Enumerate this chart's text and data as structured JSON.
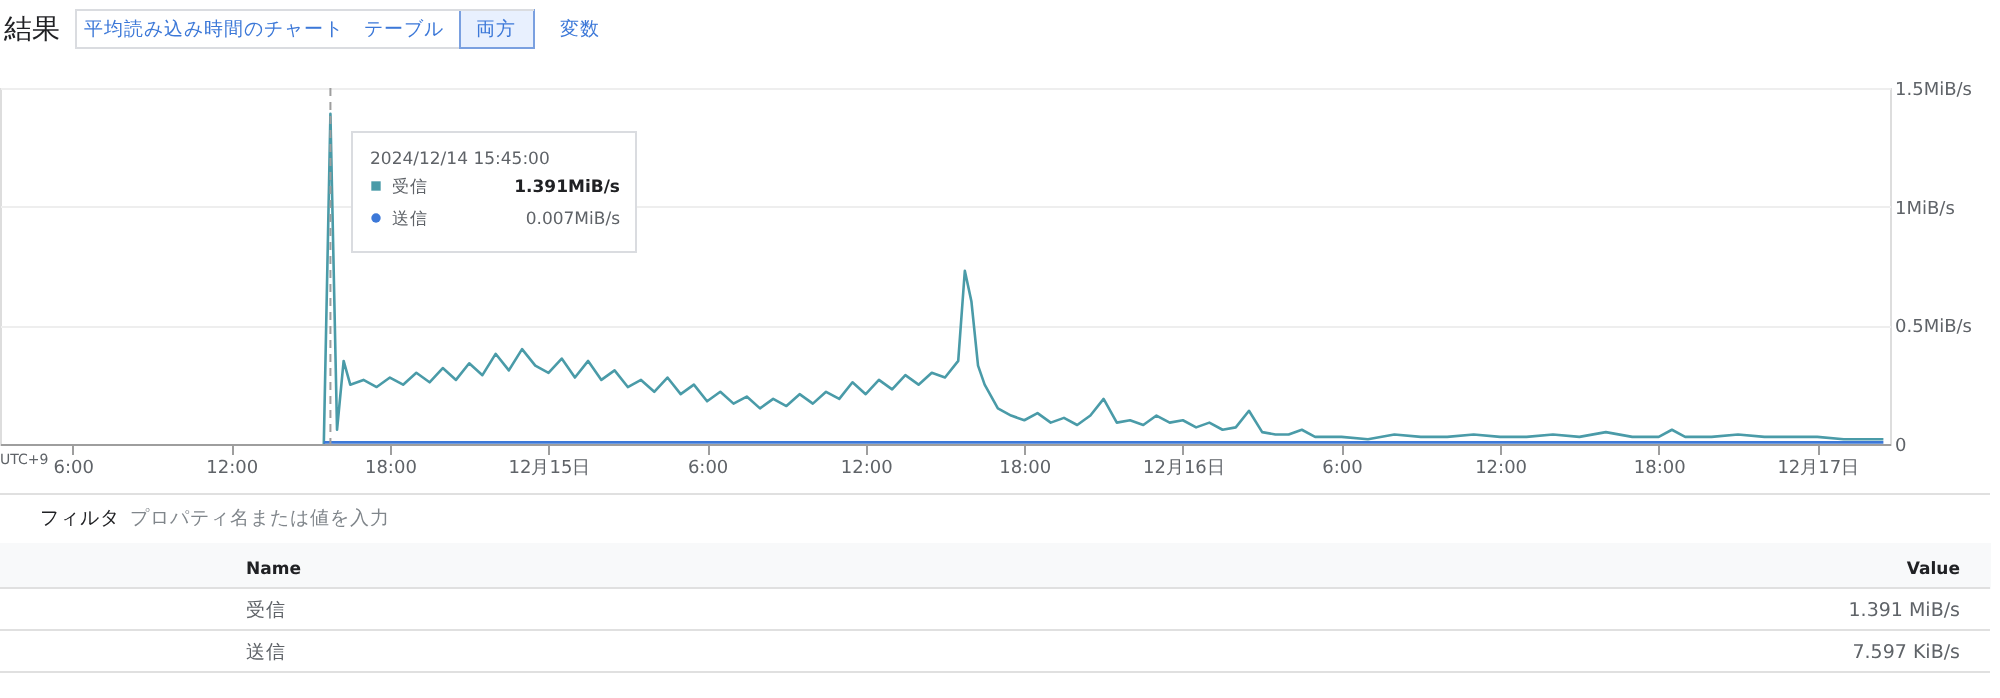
{
  "chart_data": {
    "type": "line",
    "title": "結果",
    "annotations": [
      "平均読み込み時間のチャート",
      "テーブル",
      "両方",
      "変数",
      "UTC+9",
      "2024/12/14 15:45:00",
      "1.391MiB/s",
      "0.007MiB/s",
      "フィルタ",
      "プロパティ名または値を入力",
      "Name",
      "Value",
      "1.391  MiB/s",
      "7.597  KiB/s"
    ],
    "x": [
      "2024-12-14T15:30",
      "2024-12-14T15:45",
      "2024-12-14T16:00",
      "2024-12-14T16:15",
      "2024-12-14T16:30",
      "2024-12-14T17:00",
      "2024-12-14T17:30",
      "2024-12-14T18:00",
      "2024-12-14T18:30",
      "2024-12-14T19:00",
      "2024-12-14T19:30",
      "2024-12-14T20:00",
      "2024-12-14T20:30",
      "2024-12-14T21:00",
      "2024-12-14T21:30",
      "2024-12-14T22:00",
      "2024-12-14T22:30",
      "2024-12-14T23:00",
      "2024-12-14T23:30",
      "2024-12-15T00:00",
      "2024-12-15T00:30",
      "2024-12-15T01:00",
      "2024-12-15T01:30",
      "2024-12-15T02:00",
      "2024-12-15T02:30",
      "2024-12-15T03:00",
      "2024-12-15T03:30",
      "2024-12-15T04:00",
      "2024-12-15T04:30",
      "2024-12-15T05:00",
      "2024-12-15T05:30",
      "2024-12-15T06:00",
      "2024-12-15T06:30",
      "2024-12-15T07:00",
      "2024-12-15T07:30",
      "2024-12-15T08:00",
      "2024-12-15T08:30",
      "2024-12-15T09:00",
      "2024-12-15T09:30",
      "2024-12-15T10:00",
      "2024-12-15T10:30",
      "2024-12-15T11:00",
      "2024-12-15T11:30",
      "2024-12-15T12:00",
      "2024-12-15T12:30",
      "2024-12-15T13:00",
      "2024-12-15T13:30",
      "2024-12-15T14:00",
      "2024-12-15T14:30",
      "2024-12-15T15:00",
      "2024-12-15T15:30",
      "2024-12-15T15:45",
      "2024-12-15T16:00",
      "2024-12-15T16:15",
      "2024-12-15T16:30",
      "2024-12-15T17:00",
      "2024-12-15T17:30",
      "2024-12-15T18:00",
      "2024-12-15T18:30",
      "2024-12-15T19:00",
      "2024-12-15T19:30",
      "2024-12-15T20:00",
      "2024-12-15T20:30",
      "2024-12-15T21:00",
      "2024-12-15T21:30",
      "2024-12-15T22:00",
      "2024-12-15T22:30",
      "2024-12-15T23:00",
      "2024-12-15T23:30",
      "2024-12-16T00:00",
      "2024-12-16T00:30",
      "2024-12-16T01:00",
      "2024-12-16T01:30",
      "2024-12-16T02:00",
      "2024-12-16T02:30",
      "2024-12-16T03:00",
      "2024-12-16T03:30",
      "2024-12-16T04:00",
      "2024-12-16T04:30",
      "2024-12-16T05:00",
      "2024-12-16T06:00",
      "2024-12-16T07:00",
      "2024-12-16T08:00",
      "2024-12-16T09:00",
      "2024-12-16T10:00",
      "2024-12-16T11:00",
      "2024-12-16T12:00",
      "2024-12-16T13:00",
      "2024-12-16T14:00",
      "2024-12-16T15:00",
      "2024-12-16T16:00",
      "2024-12-16T17:00",
      "2024-12-16T18:00",
      "2024-12-16T18:30",
      "2024-12-16T19:00",
      "2024-12-16T20:00",
      "2024-12-16T21:00",
      "2024-12-16T22:00",
      "2024-12-16T23:00",
      "2024-12-17T00:00",
      "2024-12-17T01:00",
      "2024-12-17T02:00",
      "2024-12-17T02:30"
    ],
    "series": [
      {
        "name": "受信",
        "color": "#4a9ba8",
        "values": [
          0,
          1.391,
          0.06,
          0.35,
          0.25,
          0.27,
          0.24,
          0.28,
          0.25,
          0.3,
          0.26,
          0.32,
          0.27,
          0.34,
          0.29,
          0.38,
          0.31,
          0.4,
          0.33,
          0.3,
          0.36,
          0.28,
          0.35,
          0.27,
          0.31,
          0.24,
          0.27,
          0.22,
          0.28,
          0.21,
          0.25,
          0.18,
          0.22,
          0.17,
          0.2,
          0.15,
          0.19,
          0.16,
          0.21,
          0.17,
          0.22,
          0.19,
          0.26,
          0.21,
          0.27,
          0.23,
          0.29,
          0.25,
          0.3,
          0.28,
          0.35,
          0.73,
          0.6,
          0.33,
          0.25,
          0.15,
          0.12,
          0.1,
          0.13,
          0.09,
          0.11,
          0.08,
          0.12,
          0.19,
          0.09,
          0.1,
          0.08,
          0.12,
          0.09,
          0.1,
          0.07,
          0.09,
          0.06,
          0.07,
          0.14,
          0.05,
          0.04,
          0.04,
          0.06,
          0.03,
          0.03,
          0.02,
          0.04,
          0.03,
          0.03,
          0.04,
          0.03,
          0.03,
          0.04,
          0.03,
          0.05,
          0.03,
          0.03,
          0.06,
          0.03,
          0.03,
          0.04,
          0.03,
          0.03,
          0.03,
          0.02,
          0.02,
          0.02
        ]
      },
      {
        "name": "送信",
        "color": "#3c78d8",
        "values": [
          0.007,
          0.007,
          0.007,
          0.007,
          0.007,
          0.007,
          0.007,
          0.007,
          0.007,
          0.007,
          0.007,
          0.007,
          0.007,
          0.007,
          0.007,
          0.007,
          0.007,
          0.007,
          0.007,
          0.007,
          0.007,
          0.007,
          0.007,
          0.007,
          0.007,
          0.007,
          0.007,
          0.007,
          0.007,
          0.007,
          0.007,
          0.007,
          0.007,
          0.007,
          0.007,
          0.007,
          0.007,
          0.007,
          0.007,
          0.007,
          0.007,
          0.007,
          0.007,
          0.007,
          0.007,
          0.007,
          0.007,
          0.007,
          0.007,
          0.007,
          0.007,
          0.007,
          0.007,
          0.007,
          0.007,
          0.007,
          0.007,
          0.007,
          0.007,
          0.007,
          0.007,
          0.007,
          0.007,
          0.007,
          0.007,
          0.007,
          0.007,
          0.007,
          0.007,
          0.007,
          0.007,
          0.007,
          0.007,
          0.007,
          0.007,
          0.007,
          0.007,
          0.007,
          0.007,
          0.007,
          0.007,
          0.007,
          0.007,
          0.007,
          0.007,
          0.007,
          0.007,
          0.007,
          0.007,
          0.007,
          0.007,
          0.007,
          0.007,
          0.007,
          0.007,
          0.007,
          0.007,
          0.007,
          0.007,
          0.007,
          0.007,
          0.007,
          0.007
        ]
      }
    ],
    "xlim": [
      "2024-12-14T03:15",
      "2024-12-17T02:45"
    ],
    "xticks": [
      {
        "value": "2024-12-14T06:00",
        "label": "6:00"
      },
      {
        "value": "2024-12-14T12:00",
        "label": "12:00"
      },
      {
        "value": "2024-12-14T18:00",
        "label": "18:00"
      },
      {
        "value": "2024-12-15",
        "label": "12月15日"
      },
      {
        "value": "2024-12-15T06:00",
        "label": "6:00"
      },
      {
        "value": "2024-12-15T12:00",
        "label": "12:00"
      },
      {
        "value": "2024-12-15T18:00",
        "label": "18:00"
      },
      {
        "value": "2024-12-16",
        "label": "12月16日"
      },
      {
        "value": "2024-12-16T06:00",
        "label": "6:00"
      },
      {
        "value": "2024-12-16T12:00",
        "label": "12:00"
      },
      {
        "value": "2024-12-16T18:00",
        "label": "18:00"
      },
      {
        "value": "2024-12-17",
        "label": "12月17日"
      }
    ],
    "ylim": [
      0,
      1.5
    ],
    "yticks": [
      0,
      {
        "value": 0.5,
        "label": "0.5MiB/s"
      },
      {
        "value": 1,
        "label": "1MiB/s"
      },
      {
        "value": 1.5,
        "label": "1.5MiB/s"
      }
    ],
    "ref_lines": [
      {
        "axis": "x",
        "value": "2024-12-14T15:45",
        "color": "#9e9e9e",
        "line_style": "dashed"
      }
    ],
    "grid": "y",
    "legend": "top left",
    "marker": "none",
    "line_style": "solid"
  }
}
